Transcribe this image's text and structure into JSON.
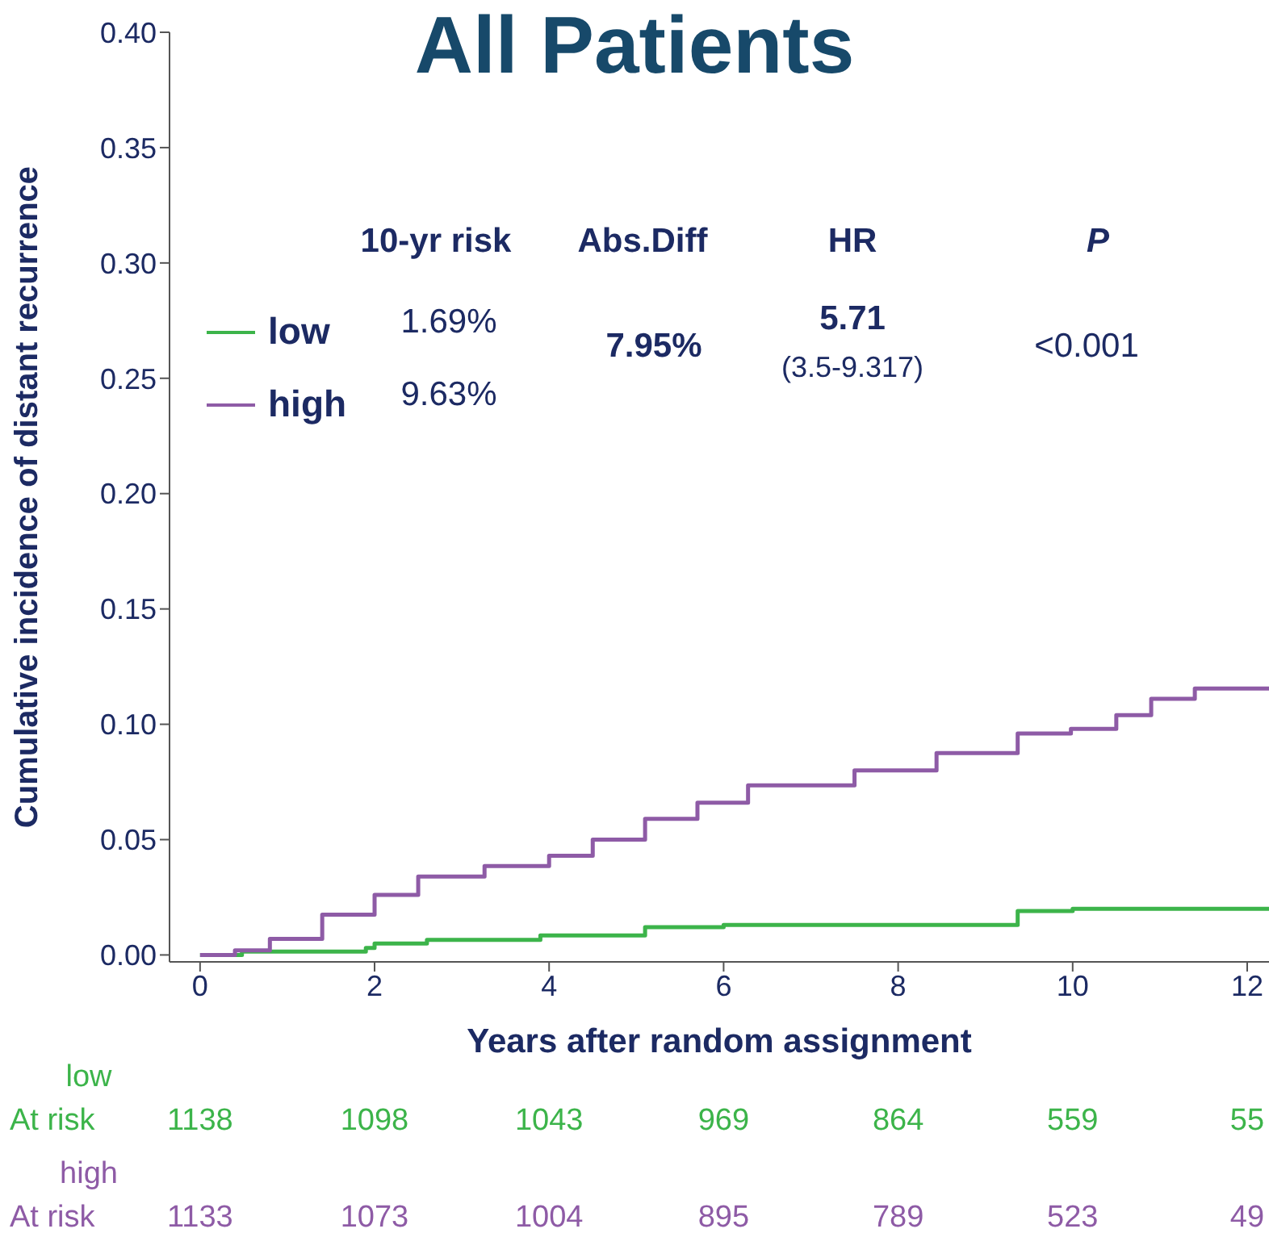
{
  "chart_data": {
    "type": "step",
    "title": "All Patients",
    "xlabel": "Years after random assignment",
    "ylabel": "Cumulative incidence of distant recurrence",
    "xlim": [
      -0.35,
      12.25
    ],
    "xticks": [
      0,
      2,
      4,
      6,
      8,
      10,
      12
    ],
    "ylim": [
      -0.003,
      0.4
    ],
    "yticks": [
      {
        "value": 0,
        "label": "0.00"
      },
      {
        "value": 0.05,
        "label": "0.05"
      },
      {
        "value": 0.1,
        "label": "0.10"
      },
      {
        "value": 0.15,
        "label": "0.15"
      },
      {
        "value": 0.2,
        "label": "0.20"
      },
      {
        "value": 0.25,
        "label": "0.25"
      },
      {
        "value": 0.3,
        "label": "0.30"
      },
      {
        "value": 0.35,
        "label": "0.35"
      },
      {
        "value": 0.4,
        "label": "0.40"
      }
    ],
    "legend": "top left",
    "marker": "none",
    "series": [
      {
        "name": "low",
        "color": "#3cb44a",
        "x": [
          0,
          0.48,
          1.9,
          2.0,
          2.6,
          3.9,
          5.1,
          6.0,
          9.37,
          10.0,
          12.25
        ],
        "values": [
          0,
          0.0015,
          0.003,
          0.005,
          0.0065,
          0.0085,
          0.012,
          0.013,
          0.019,
          0.02,
          0.02
        ]
      },
      {
        "name": "high",
        "color": "#8e5ba6",
        "x": [
          0,
          0.4,
          0.8,
          1.4,
          2.0,
          2.5,
          3.26,
          4.0,
          4.5,
          5.1,
          5.7,
          6.28,
          7.5,
          8.44,
          9.37,
          9.98,
          10.5,
          10.9,
          11.4,
          12.25
        ],
        "values": [
          0,
          0.002,
          0.007,
          0.0175,
          0.026,
          0.034,
          0.0385,
          0.043,
          0.05,
          0.059,
          0.066,
          0.0735,
          0.08,
          0.0875,
          0.096,
          0.098,
          0.104,
          0.111,
          0.1155,
          0.1155
        ]
      }
    ],
    "annotations": [
      "10-yr risk",
      "Abs.Diff",
      "HR",
      "P",
      "1.69%",
      "9.63%",
      "7.95%",
      "5.71",
      "(3.5-9.317)",
      "<0.001",
      "low",
      "At risk",
      "1138",
      "1098",
      "1043",
      "969",
      "864",
      "559",
      "55",
      "high",
      "At risk",
      "1133",
      "1073",
      "1004",
      "895",
      "789",
      "523",
      "49"
    ]
  }
}
